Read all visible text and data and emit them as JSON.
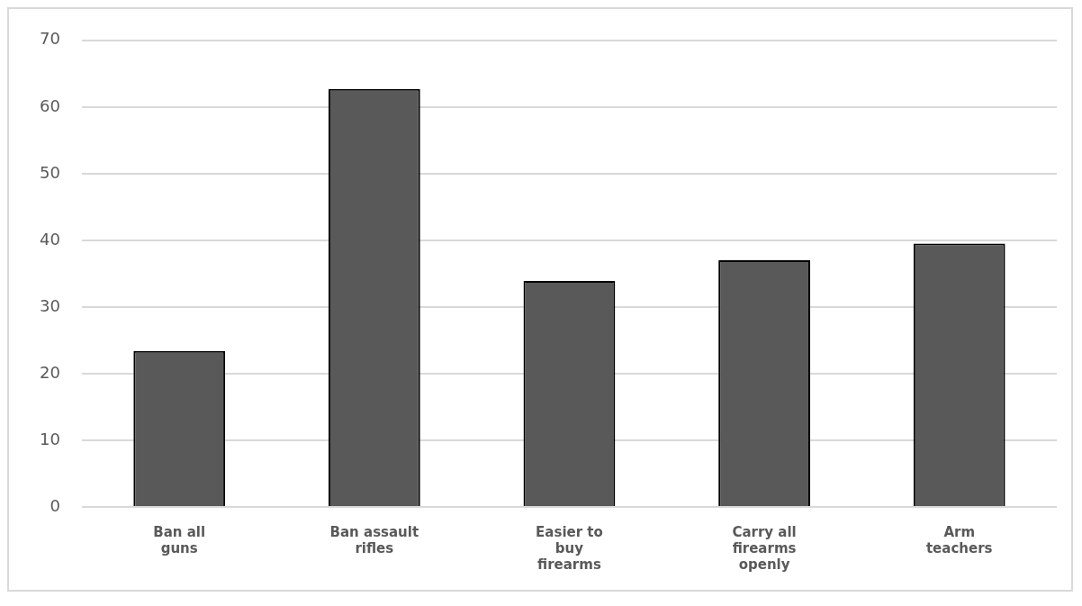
{
  "chart_data": {
    "type": "bar",
    "categories": [
      [
        "Ban all",
        "guns"
      ],
      [
        "Ban assault",
        "rifles"
      ],
      [
        "Easier to",
        "buy",
        "firearms"
      ],
      [
        "Carry all",
        "firearms",
        "openly"
      ],
      [
        "Arm",
        "teachers"
      ]
    ],
    "values": [
      23.4,
      62.7,
      33.9,
      37.0,
      39.5
    ],
    "color": "#595959",
    "ylim": [
      0,
      70
    ],
    "yticks": [
      0,
      10,
      20,
      30,
      40,
      50,
      60,
      70
    ],
    "grid": "y",
    "legend": false
  }
}
